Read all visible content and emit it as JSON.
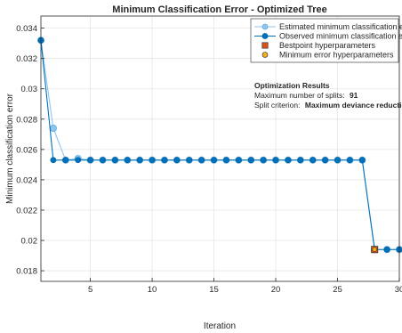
{
  "chart_data": {
    "type": "line",
    "title": "Minimum Classification Error - Optimized Tree",
    "xlabel": "Iteration",
    "ylabel": "Minimum classification error",
    "xlim": [
      1,
      30
    ],
    "ylim": [
      0.0173,
      0.0348
    ],
    "xticks": [
      5,
      10,
      15,
      20,
      25,
      30
    ],
    "yticks": [
      0.018,
      0.02,
      0.022,
      0.024,
      0.026,
      0.028,
      0.03,
      0.032,
      0.034
    ],
    "ytick_labels": [
      "0.018",
      "0.02",
      "0.022",
      "0.024",
      "0.026",
      "0.028",
      "0.03",
      "0.032",
      "0.034"
    ],
    "grid": true,
    "legend_position": "top-right",
    "x": [
      1,
      2,
      3,
      4,
      5,
      6,
      7,
      8,
      9,
      10,
      11,
      12,
      13,
      14,
      15,
      16,
      17,
      18,
      19,
      20,
      21,
      22,
      23,
      24,
      25,
      26,
      27,
      28,
      29,
      30
    ],
    "series": [
      {
        "name": "Estimated minimum classification error",
        "color": "#8fc6ec",
        "values": [
          0.0332,
          0.0274,
          0.0253,
          0.0254,
          0.0253,
          0.0253,
          0.0253,
          0.0253,
          0.0253,
          0.0253,
          0.0253,
          0.0253,
          0.0253,
          0.0253,
          0.0253,
          0.0253,
          0.0253,
          0.0253,
          0.0253,
          0.0253,
          0.0253,
          0.0253,
          0.0253,
          0.0253,
          0.0253,
          0.0253,
          0.0253,
          0.0194,
          0.0194,
          0.0194
        ]
      },
      {
        "name": "Observed minimum classification error",
        "color": "#0072bd",
        "values": [
          0.0332,
          0.0253,
          0.0253,
          0.0253,
          0.0253,
          0.0253,
          0.0253,
          0.0253,
          0.0253,
          0.0253,
          0.0253,
          0.0253,
          0.0253,
          0.0253,
          0.0253,
          0.0253,
          0.0253,
          0.0253,
          0.0253,
          0.0253,
          0.0253,
          0.0253,
          0.0253,
          0.0253,
          0.0253,
          0.0253,
          0.0253,
          0.0194,
          0.0194,
          0.0194
        ]
      }
    ],
    "markers": [
      {
        "name": "Bestpoint hyperparameters",
        "x": 28,
        "y": 0.0194,
        "color": "#d95319",
        "shape": "square"
      },
      {
        "name": "Minimum error hyperparameters",
        "x": 28,
        "y": 0.0194,
        "color": "#edb120",
        "shape": "circle"
      }
    ],
    "annotation": {
      "title": "Optimization Results",
      "lines": [
        {
          "label": "Maximum number of splits:",
          "value": "91"
        },
        {
          "label": "Split criterion:",
          "value": "Maximum deviance reduction"
        }
      ]
    }
  }
}
